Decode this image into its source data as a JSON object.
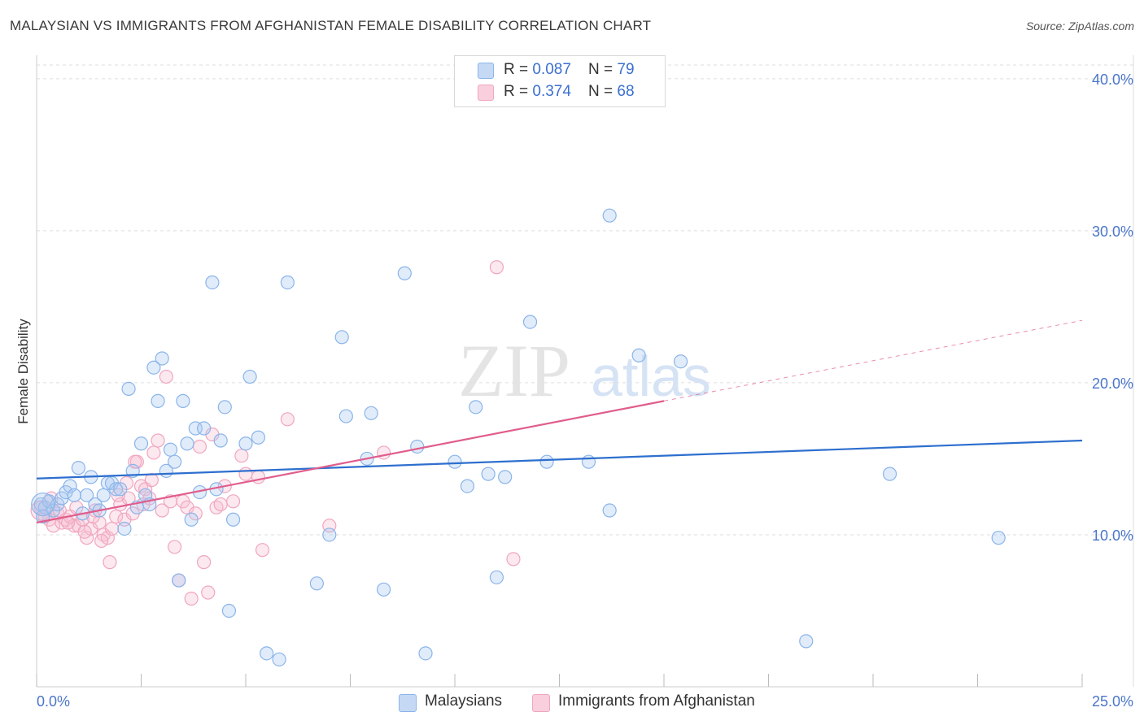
{
  "title": "MALAYSIAN VS IMMIGRANTS FROM AFGHANISTAN FEMALE DISABILITY CORRELATION CHART",
  "source": "Source: ZipAtlas.com",
  "watermark": {
    "zip": "ZIP",
    "atlas": "atlas"
  },
  "legend": {
    "series1": {
      "r_label": "R = ",
      "r_value": "0.087",
      "n_label": "N = ",
      "n_value": "79"
    },
    "series2": {
      "r_label": "R = ",
      "r_value": "0.374",
      "n_label": "N = ",
      "n_value": "68"
    }
  },
  "bottom_legend": {
    "series1": "Malaysians",
    "series2": "Immigrants from Afghanistan"
  },
  "colors": {
    "blue": "#8ab4ea",
    "blue_line": "#2d6fce",
    "pink": "#f0a6bf",
    "pink_line": "#e05d8c",
    "grid": "#dddddd",
    "axis_text": "#4a76c9"
  },
  "chart_data": {
    "type": "scatter",
    "title": "MALAYSIAN VS IMMIGRANTS FROM AFGHANISTAN FEMALE DISABILITY CORRELATION CHART",
    "xlabel": "",
    "ylabel": "Female Disability",
    "xlim": [
      0,
      25
    ],
    "ylim": [
      0,
      40
    ],
    "x_tick_labels": {
      "min": "0.0%",
      "max": "25.0%"
    },
    "y_tick_labels": [
      "10.0%",
      "20.0%",
      "30.0%",
      "40.0%"
    ],
    "y_ticks": [
      10,
      20,
      30,
      40
    ],
    "series": [
      {
        "name": "Malaysians",
        "trend": {
          "x0": 0,
          "y0": 13.7,
          "x1": 25,
          "y1": 16.2,
          "dashed_to": null
        },
        "points": [
          [
            0.1,
            12.0
          ],
          [
            0.2,
            11.8
          ],
          [
            0.3,
            12.2
          ],
          [
            0.4,
            11.6
          ],
          [
            0.5,
            12.0
          ],
          [
            0.6,
            12.4
          ],
          [
            0.7,
            12.8
          ],
          [
            0.8,
            13.2
          ],
          [
            0.9,
            12.6
          ],
          [
            1.0,
            14.4
          ],
          [
            1.1,
            11.4
          ],
          [
            1.2,
            12.6
          ],
          [
            1.3,
            13.8
          ],
          [
            1.4,
            12.0
          ],
          [
            1.5,
            11.6
          ],
          [
            1.6,
            12.6
          ],
          [
            1.7,
            13.4
          ],
          [
            1.8,
            13.4
          ],
          [
            1.9,
            13.0
          ],
          [
            2.0,
            13.0
          ],
          [
            2.1,
            10.4
          ],
          [
            2.2,
            19.6
          ],
          [
            2.3,
            14.2
          ],
          [
            2.4,
            11.8
          ],
          [
            2.5,
            16.0
          ],
          [
            2.6,
            12.6
          ],
          [
            2.7,
            12.0
          ],
          [
            2.8,
            21.0
          ],
          [
            2.9,
            18.8
          ],
          [
            3.0,
            21.6
          ],
          [
            3.1,
            14.2
          ],
          [
            3.2,
            15.6
          ],
          [
            3.3,
            14.8
          ],
          [
            3.4,
            7.0
          ],
          [
            3.5,
            18.8
          ],
          [
            3.6,
            16.0
          ],
          [
            3.7,
            11.0
          ],
          [
            3.8,
            17.0
          ],
          [
            3.9,
            12.8
          ],
          [
            4.0,
            17.0
          ],
          [
            4.2,
            26.6
          ],
          [
            4.3,
            13.0
          ],
          [
            4.4,
            16.2
          ],
          [
            4.5,
            18.4
          ],
          [
            4.6,
            5.0
          ],
          [
            4.7,
            11.0
          ],
          [
            5.0,
            16.0
          ],
          [
            5.1,
            20.4
          ],
          [
            5.3,
            16.4
          ],
          [
            5.5,
            2.2
          ],
          [
            5.8,
            1.8
          ],
          [
            6.0,
            26.6
          ],
          [
            6.7,
            6.8
          ],
          [
            7.0,
            10.0
          ],
          [
            7.3,
            23.0
          ],
          [
            7.4,
            17.8
          ],
          [
            7.9,
            15.0
          ],
          [
            8.0,
            18.0
          ],
          [
            8.3,
            6.4
          ],
          [
            8.8,
            27.2
          ],
          [
            9.1,
            15.8
          ],
          [
            9.3,
            2.2
          ],
          [
            10.0,
            14.8
          ],
          [
            10.3,
            13.2
          ],
          [
            10.5,
            18.4
          ],
          [
            10.8,
            14.0
          ],
          [
            11.0,
            7.2
          ],
          [
            11.2,
            13.8
          ],
          [
            11.8,
            24.0
          ],
          [
            12.2,
            14.8
          ],
          [
            13.2,
            14.8
          ],
          [
            13.7,
            31.0
          ],
          [
            13.7,
            11.6
          ],
          [
            14.4,
            21.8
          ],
          [
            15.4,
            21.4
          ],
          [
            18.4,
            3.0
          ],
          [
            20.4,
            14.0
          ],
          [
            23.0,
            9.8
          ],
          [
            0.15,
            11.2
          ]
        ]
      },
      {
        "name": "Immigrants from Afghanistan",
        "trend": {
          "x0": 0,
          "y0": 10.8,
          "x1": 15.0,
          "y1": 18.8,
          "dashed_to": {
            "x": 25,
            "y": 24.1
          }
        },
        "points": [
          [
            0.1,
            11.8
          ],
          [
            0.2,
            11.2
          ],
          [
            0.3,
            11.0
          ],
          [
            0.4,
            10.6
          ],
          [
            0.5,
            11.4
          ],
          [
            0.6,
            10.8
          ],
          [
            0.7,
            11.0
          ],
          [
            0.8,
            11.2
          ],
          [
            0.9,
            10.6
          ],
          [
            1.0,
            10.6
          ],
          [
            1.1,
            11.0
          ],
          [
            1.2,
            9.8
          ],
          [
            1.3,
            10.4
          ],
          [
            1.4,
            11.6
          ],
          [
            1.5,
            10.8
          ],
          [
            1.6,
            10.0
          ],
          [
            1.7,
            9.8
          ],
          [
            1.8,
            10.4
          ],
          [
            1.9,
            11.2
          ],
          [
            2.0,
            12.0
          ],
          [
            2.1,
            11.0
          ],
          [
            2.2,
            12.4
          ],
          [
            2.3,
            11.4
          ],
          [
            2.4,
            14.8
          ],
          [
            2.5,
            13.2
          ],
          [
            2.6,
            13.0
          ],
          [
            2.7,
            12.4
          ],
          [
            2.8,
            15.4
          ],
          [
            2.9,
            16.2
          ],
          [
            3.0,
            11.6
          ],
          [
            3.1,
            20.4
          ],
          [
            3.2,
            12.2
          ],
          [
            3.3,
            9.2
          ],
          [
            3.4,
            7.0
          ],
          [
            3.5,
            12.2
          ],
          [
            3.6,
            11.8
          ],
          [
            3.7,
            5.8
          ],
          [
            3.8,
            11.4
          ],
          [
            3.9,
            15.8
          ],
          [
            4.0,
            8.2
          ],
          [
            4.1,
            6.2
          ],
          [
            4.2,
            16.6
          ],
          [
            4.3,
            11.8
          ],
          [
            4.4,
            12.0
          ],
          [
            4.5,
            13.2
          ],
          [
            4.7,
            12.2
          ],
          [
            4.9,
            15.2
          ],
          [
            5.0,
            14.0
          ],
          [
            5.3,
            13.8
          ],
          [
            5.4,
            9.0
          ],
          [
            6.0,
            17.6
          ],
          [
            7.0,
            10.6
          ],
          [
            8.3,
            15.4
          ],
          [
            11.0,
            27.6
          ],
          [
            11.4,
            8.4
          ],
          [
            0.35,
            12.4
          ],
          [
            0.55,
            11.6
          ],
          [
            0.75,
            10.8
          ],
          [
            0.95,
            11.8
          ],
          [
            1.15,
            10.2
          ],
          [
            1.35,
            11.2
          ],
          [
            1.55,
            9.6
          ],
          [
            1.75,
            8.2
          ],
          [
            1.95,
            12.6
          ],
          [
            2.15,
            13.4
          ],
          [
            2.35,
            14.8
          ],
          [
            2.55,
            12.0
          ],
          [
            2.75,
            13.6
          ]
        ]
      }
    ]
  }
}
